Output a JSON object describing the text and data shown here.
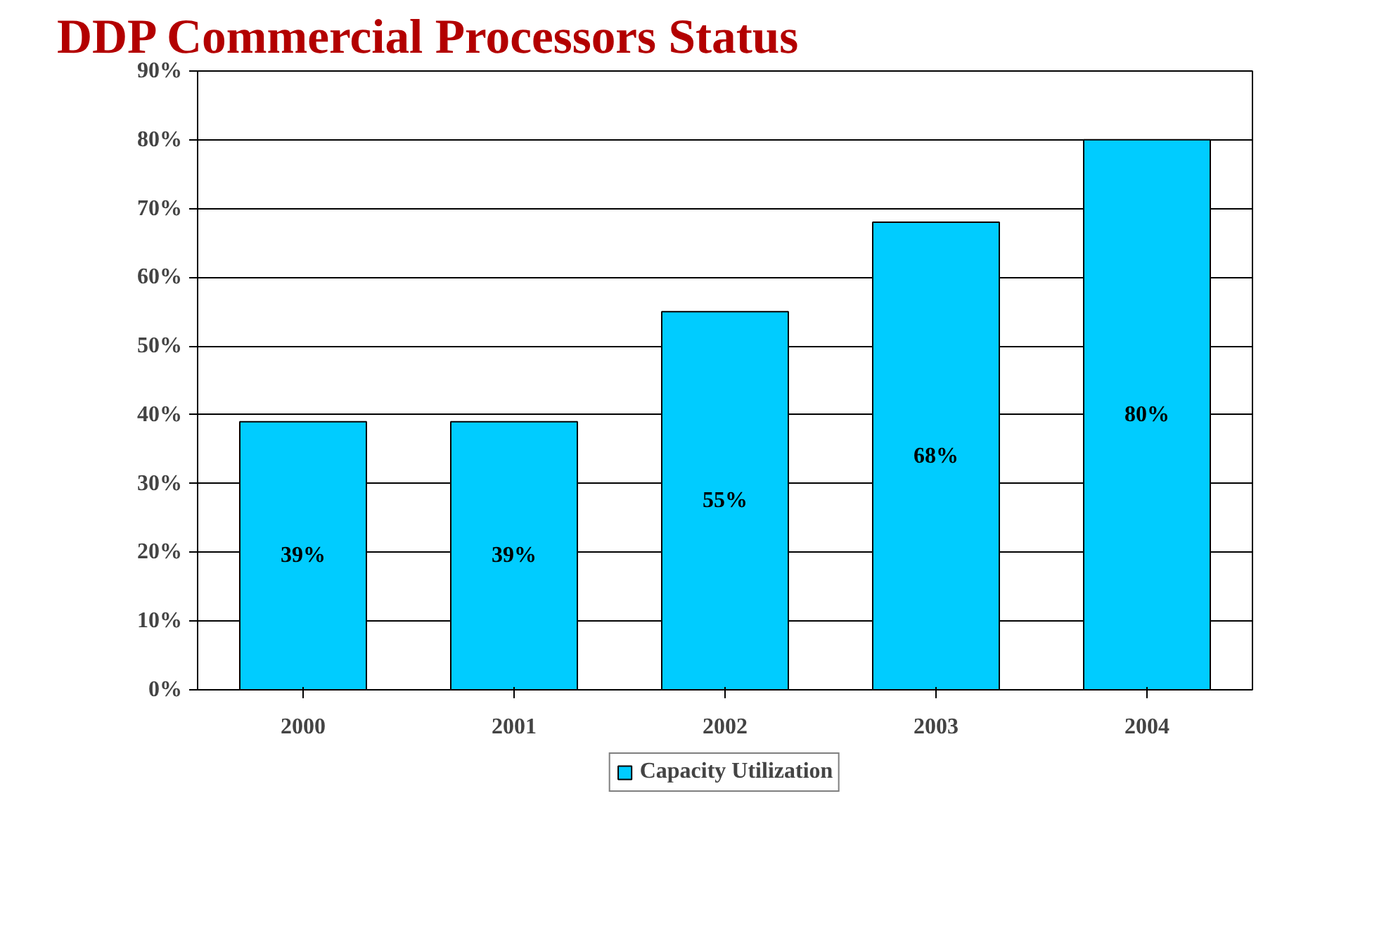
{
  "chart_data": {
    "type": "bar",
    "title": "DDP Commercial Processors Status",
    "categories": [
      "2000",
      "2001",
      "2002",
      "2003",
      "2004"
    ],
    "series": [
      {
        "name": "Capacity Utilization",
        "color": "#00ccff",
        "values": [
          39,
          39,
          55,
          68,
          80
        ],
        "value_labels": [
          "39%",
          "39%",
          "55%",
          "68%",
          "80%"
        ]
      }
    ],
    "ylim": [
      0,
      90
    ],
    "yticks": [
      {
        "value": 0,
        "label": "0%"
      },
      {
        "value": 10,
        "label": "10%"
      },
      {
        "value": 20,
        "label": "20%"
      },
      {
        "value": 30,
        "label": "30%"
      },
      {
        "value": 40,
        "label": "40%"
      },
      {
        "value": 50,
        "label": "50%"
      },
      {
        "value": 60,
        "label": "60%"
      },
      {
        "value": 70,
        "label": "70%"
      },
      {
        "value": 80,
        "label": "80%"
      },
      {
        "value": 90,
        "label": "90%"
      }
    ],
    "grid": "y",
    "legend": "bottom"
  }
}
